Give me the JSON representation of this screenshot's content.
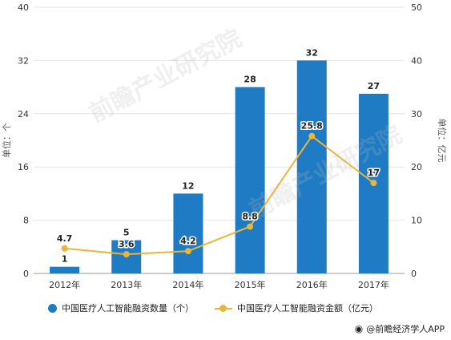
{
  "chart_data": {
    "type": "bar",
    "categories": [
      "2012年",
      "2013年",
      "2014年",
      "2015年",
      "2016年",
      "2017年"
    ],
    "series": [
      {
        "name": "中国医疗人工智能融资数量（个）",
        "type": "bar",
        "axis": "left",
        "values": [
          1,
          5,
          12,
          28,
          32,
          27
        ],
        "color": "#1f7bc4"
      },
      {
        "name": "中国医疗人工智能融资金额（亿元）",
        "type": "line",
        "axis": "right",
        "values": [
          4.7,
          3.6,
          4.2,
          8.8,
          25.8,
          17
        ],
        "color": "#e8b63a"
      }
    ],
    "y_left": {
      "label": "单位：个",
      "ticks": [
        0,
        8,
        16,
        24,
        32,
        40
      ],
      "lim": [
        0,
        40
      ]
    },
    "y_right": {
      "label": "单位：亿元",
      "ticks": [
        0,
        10,
        20,
        30,
        40,
        50
      ],
      "lim": [
        0,
        50
      ]
    },
    "legend_position": "bottom"
  },
  "watermark": "前瞻产业研究院",
  "source": {
    "icon": "wechat-icon",
    "text": "@前瞻经济学人APP"
  }
}
